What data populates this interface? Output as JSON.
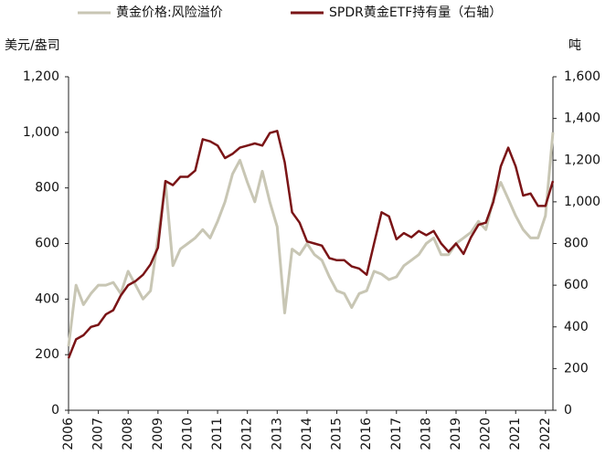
{
  "chart_data": {
    "type": "line",
    "x": [
      2006,
      2006.25,
      2006.5,
      2006.75,
      2007,
      2007.25,
      2007.5,
      2007.75,
      2008,
      2008.25,
      2008.5,
      2008.75,
      2009,
      2009.25,
      2009.5,
      2009.75,
      2010,
      2010.25,
      2010.5,
      2010.75,
      2011,
      2011.25,
      2011.5,
      2011.75,
      2012,
      2012.25,
      2012.5,
      2012.75,
      2013,
      2013.25,
      2013.5,
      2013.75,
      2014,
      2014.25,
      2014.5,
      2014.75,
      2015,
      2015.25,
      2015.5,
      2015.75,
      2016,
      2016.25,
      2016.5,
      2016.75,
      2017,
      2017.25,
      2017.5,
      2017.75,
      2018,
      2018.25,
      2018.5,
      2018.75,
      2019,
      2019.25,
      2019.5,
      2019.75,
      2020,
      2020.25,
      2020.5,
      2020.75,
      2021,
      2021.25,
      2021.5,
      2021.75,
      2022,
      2022.25
    ],
    "series": [
      {
        "name": "黄金价格:风险溢价",
        "color": "#c8c6b4",
        "width": 3,
        "values": [
          230,
          450,
          380,
          420,
          450,
          450,
          460,
          420,
          500,
          450,
          400,
          430,
          620,
          820,
          520,
          580,
          600,
          620,
          650,
          620,
          680,
          750,
          850,
          900,
          820,
          750,
          860,
          750,
          660,
          350,
          580,
          560,
          600,
          560,
          540,
          480,
          430,
          420,
          370,
          420,
          430,
          500,
          490,
          470,
          480,
          520,
          540,
          560,
          600,
          620,
          560,
          560,
          600,
          620,
          640,
          680,
          650,
          760,
          820,
          760,
          700,
          650,
          620,
          620,
          700,
          1000
        ]
      },
      {
        "name": "SPDR黄金ETF持有量（右轴）",
        "color": "#7a1416",
        "width": 2.5,
        "axis": "y2",
        "values": [
          250,
          340,
          360,
          400,
          410,
          460,
          480,
          550,
          600,
          620,
          650,
          700,
          780,
          1100,
          1080,
          1120,
          1120,
          1150,
          1300,
          1290,
          1270,
          1210,
          1230,
          1260,
          1270,
          1280,
          1270,
          1330,
          1340,
          1190,
          950,
          900,
          810,
          800,
          790,
          730,
          720,
          720,
          690,
          680,
          650,
          800,
          950,
          930,
          820,
          850,
          830,
          860,
          840,
          860,
          800,
          760,
          800,
          750,
          830,
          890,
          900,
          1000,
          1170,
          1260,
          1170,
          1030,
          1040,
          980,
          980,
          1100
        ]
      }
    ],
    "ylabel": "美元/盎司",
    "y2label": "吨",
    "xlim": [
      2006,
      2022.25
    ],
    "xticks": [
      2006,
      2007,
      2008,
      2009,
      2010,
      2011,
      2012,
      2013,
      2014,
      2015,
      2016,
      2017,
      2018,
      2019,
      2020,
      2021,
      2022
    ],
    "ylim": [
      0,
      1200
    ],
    "yticks": [
      0,
      200,
      400,
      600,
      800,
      {
        "value": 1000,
        "label": "1,000"
      },
      {
        "value": 1200,
        "label": "1,200"
      }
    ],
    "y2lim": [
      0,
      1600
    ],
    "y2ticks": [
      0,
      200,
      400,
      600,
      800,
      {
        "value": 1000,
        "label": "1,000"
      },
      {
        "value": 1200,
        "label": "1,200"
      },
      {
        "value": 1400,
        "label": "1,400"
      },
      {
        "value": 1600,
        "label": "1,600"
      }
    ]
  }
}
